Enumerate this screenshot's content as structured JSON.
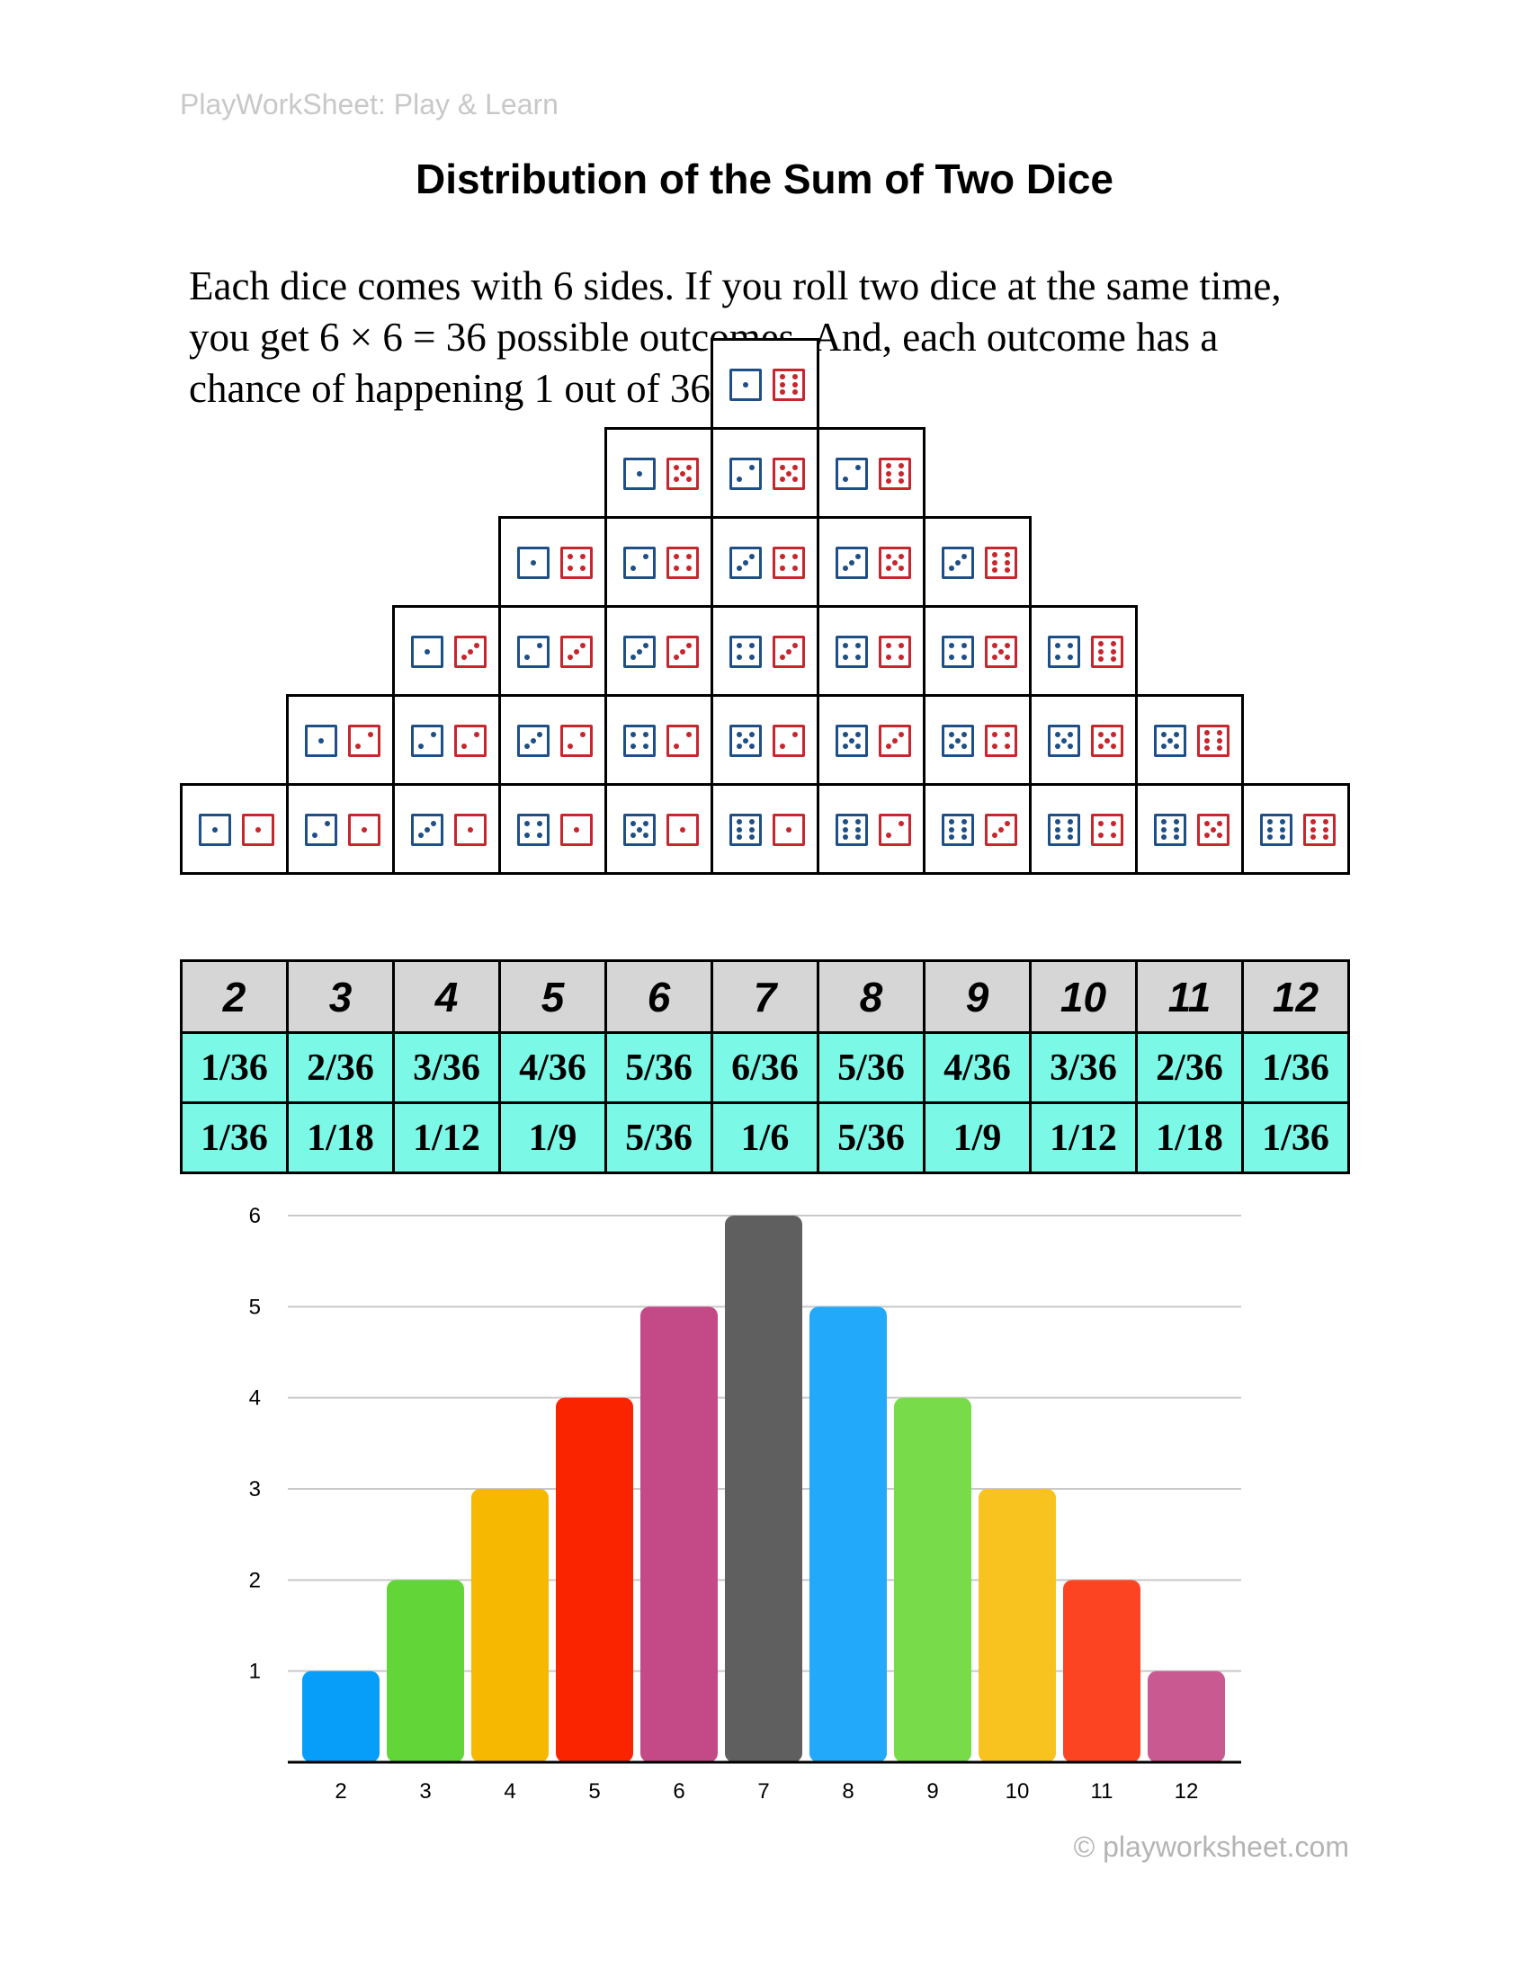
{
  "header": {
    "brand": "PlayWorkSheet: Play & Learn",
    "title": "Distribution of the Sum of Two Dice"
  },
  "intro": {
    "line1": "Each dice comes with 6 sides. If you roll two dice at the same time,",
    "line2": "you get 6 × 6 = 36 possible outcomes. And, each outcome has a",
    "line3": "chance of happening 1 out of 36 times."
  },
  "colors": {
    "die_blue": "#1e4f86",
    "die_red": "#c7262c",
    "sum_row_bg": "#d6d6d6",
    "fraction_row_bg": "#7cf8e7",
    "bars": [
      "#069ef8",
      "#62d638",
      "#f6b800",
      "#fa2500",
      "#c44a87",
      "#5f5f5f",
      "#22a9fa",
      "#78dc4a",
      "#f8c31f",
      "#fd4422",
      "#c95a91"
    ]
  },
  "table": {
    "sums": [
      "2",
      "3",
      "4",
      "5",
      "6",
      "7",
      "8",
      "9",
      "10",
      "11",
      "12"
    ],
    "fractions_36": [
      "1/36",
      "2/36",
      "3/36",
      "4/36",
      "5/36",
      "6/36",
      "5/36",
      "4/36",
      "3/36",
      "2/36",
      "1/36"
    ],
    "fractions_reduced": [
      "1/36",
      "1/18",
      "1/12",
      "1/9",
      "5/36",
      "1/6",
      "5/36",
      "1/9",
      "1/12",
      "1/18",
      "1/36"
    ],
    "outcomes": [
      [
        [
          1,
          1
        ]
      ],
      [
        [
          2,
          1
        ],
        [
          1,
          2
        ]
      ],
      [
        [
          3,
          1
        ],
        [
          2,
          2
        ],
        [
          1,
          3
        ]
      ],
      [
        [
          4,
          1
        ],
        [
          3,
          2
        ],
        [
          2,
          3
        ],
        [
          1,
          4
        ]
      ],
      [
        [
          5,
          1
        ],
        [
          4,
          2
        ],
        [
          3,
          3
        ],
        [
          2,
          4
        ],
        [
          1,
          5
        ]
      ],
      [
        [
          6,
          1
        ],
        [
          5,
          2
        ],
        [
          4,
          3
        ],
        [
          3,
          4
        ],
        [
          2,
          5
        ],
        [
          1,
          6
        ]
      ],
      [
        [
          6,
          2
        ],
        [
          5,
          3
        ],
        [
          4,
          4
        ],
        [
          3,
          5
        ],
        [
          2,
          6
        ]
      ],
      [
        [
          6,
          3
        ],
        [
          5,
          4
        ],
        [
          4,
          5
        ],
        [
          3,
          6
        ]
      ],
      [
        [
          6,
          4
        ],
        [
          5,
          5
        ],
        [
          4,
          6
        ]
      ],
      [
        [
          6,
          5
        ],
        [
          5,
          6
        ]
      ],
      [
        [
          6,
          6
        ]
      ]
    ]
  },
  "chart_data": {
    "type": "bar",
    "title": "",
    "xlabel": "",
    "ylabel": "",
    "categories": [
      "2",
      "3",
      "4",
      "5",
      "6",
      "7",
      "8",
      "9",
      "10",
      "11",
      "12"
    ],
    "values": [
      1,
      2,
      3,
      4,
      5,
      6,
      5,
      4,
      3,
      2,
      1
    ],
    "ylim": [
      0,
      6
    ],
    "yticks": [
      "1",
      "2",
      "3",
      "4",
      "5",
      "6"
    ],
    "grid": true,
    "legend": "none"
  },
  "footer": {
    "copyright": "© playworksheet.com"
  }
}
